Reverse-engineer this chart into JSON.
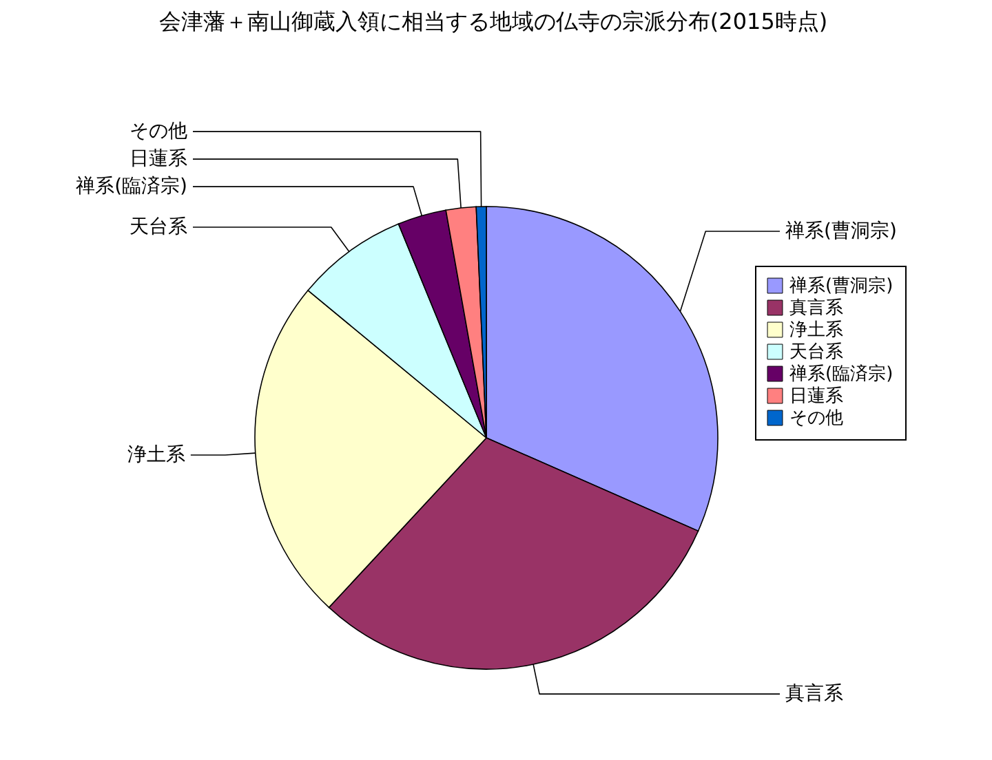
{
  "chart_data": {
    "type": "pie",
    "title": "会津藩＋南山御蔵入領に相当する地域の仏寺の宗派分布(2015時点)",
    "categories": [
      "禅系(曹洞宗)",
      "真言系",
      "浄土系",
      "天台系",
      "禅系(臨済宗)",
      "日蓮系",
      "その他"
    ],
    "values": [
      31.6,
      30.3,
      24.1,
      7.8,
      3.4,
      2.1,
      0.7
    ],
    "colors": [
      "#9999ff",
      "#993366",
      "#ffffcc",
      "#ccffff",
      "#660066",
      "#ff8080",
      "#0066cc"
    ],
    "legend": "right"
  }
}
